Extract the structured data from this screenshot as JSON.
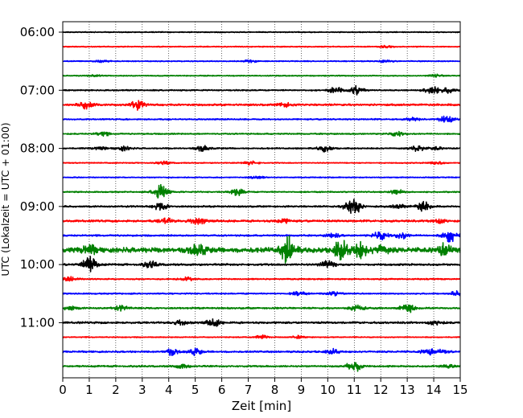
{
  "chart_data": {
    "type": "line",
    "xlabel": "Zeit  [min]",
    "ylabel": "UTC (Lokalzeit = UTC + 01:00)",
    "xlim": [
      0,
      15
    ],
    "x_ticks": [
      "0",
      "1",
      "2",
      "3",
      "4",
      "5",
      "6",
      "7",
      "8",
      "9",
      "10",
      "11",
      "12",
      "13",
      "14",
      "15"
    ],
    "y_ticks": [
      "06:00",
      "07:00",
      "08:00",
      "09:00",
      "10:00",
      "11:00"
    ],
    "grid": "vertical-dotted",
    "colors": [
      "#000000",
      "#ff0000",
      "#0000ff",
      "#008000"
    ],
    "traces": [
      {
        "start": "06:00",
        "color": "#000000",
        "amp": 0.6,
        "bursts": []
      },
      {
        "start": "06:15",
        "color": "#ff0000",
        "amp": 0.6,
        "bursts": [
          [
            12.2,
            1.2
          ]
        ]
      },
      {
        "start": "06:30",
        "color": "#0000ff",
        "amp": 0.6,
        "bursts": [
          [
            1.5,
            1.5
          ],
          [
            7.1,
            1.5
          ],
          [
            12.2,
            1.5
          ]
        ]
      },
      {
        "start": "06:45",
        "color": "#008000",
        "amp": 0.6,
        "bursts": [
          [
            1.2,
            1.0
          ],
          [
            14.1,
            1.5
          ]
        ]
      },
      {
        "start": "07:00",
        "color": "#000000",
        "amp": 0.8,
        "bursts": [
          [
            10.3,
            4
          ],
          [
            11.1,
            6
          ],
          [
            13.9,
            6
          ],
          [
            14.5,
            4
          ]
        ]
      },
      {
        "start": "07:15",
        "color": "#ff0000",
        "amp": 1.2,
        "bursts": [
          [
            0.9,
            5
          ],
          [
            2.8,
            6
          ],
          [
            8.4,
            3
          ]
        ]
      },
      {
        "start": "07:30",
        "color": "#0000ff",
        "amp": 0.8,
        "bursts": [
          [
            13.2,
            2
          ],
          [
            14.5,
            6
          ]
        ]
      },
      {
        "start": "07:45",
        "color": "#008000",
        "amp": 0.8,
        "bursts": [
          [
            1.5,
            3
          ],
          [
            12.6,
            3
          ]
        ]
      },
      {
        "start": "08:00",
        "color": "#000000",
        "amp": 0.8,
        "bursts": [
          [
            1.4,
            2
          ],
          [
            2.3,
            3
          ],
          [
            5.3,
            4
          ],
          [
            9.9,
            4
          ],
          [
            13.4,
            4
          ],
          [
            14.1,
            2
          ]
        ]
      },
      {
        "start": "08:15",
        "color": "#ff0000",
        "amp": 0.6,
        "bursts": [
          [
            3.8,
            2
          ],
          [
            7.1,
            2.5
          ],
          [
            14.1,
            2
          ]
        ]
      },
      {
        "start": "08:30",
        "color": "#0000ff",
        "amp": 0.6,
        "bursts": [
          [
            7.3,
            2
          ]
        ]
      },
      {
        "start": "08:45",
        "color": "#008000",
        "amp": 0.8,
        "bursts": [
          [
            3.7,
            12
          ],
          [
            6.6,
            5
          ],
          [
            12.6,
            3
          ]
        ]
      },
      {
        "start": "09:00",
        "color": "#000000",
        "amp": 1.0,
        "bursts": [
          [
            3.7,
            5
          ],
          [
            10.9,
            9
          ],
          [
            11.0,
            6
          ],
          [
            12.7,
            3
          ],
          [
            13.6,
            6
          ]
        ]
      },
      {
        "start": "09:15",
        "color": "#ff0000",
        "amp": 1.3,
        "bursts": [
          [
            3.9,
            4
          ],
          [
            5.1,
            5
          ],
          [
            8.3,
            3
          ],
          [
            14.2,
            3
          ]
        ]
      },
      {
        "start": "09:30",
        "color": "#0000ff",
        "amp": 1.0,
        "bursts": [
          [
            10.2,
            3
          ],
          [
            12.0,
            6
          ],
          [
            12.8,
            4
          ],
          [
            14.6,
            9
          ]
        ]
      },
      {
        "start": "09:45",
        "color": "#008000",
        "amp": 3.2,
        "bursts": [
          [
            1.0,
            6
          ],
          [
            5.1,
            8
          ],
          [
            8.5,
            16
          ],
          [
            10.5,
            12
          ],
          [
            11.2,
            10
          ],
          [
            12.0,
            6
          ],
          [
            14.4,
            7
          ]
        ]
      },
      {
        "start": "10:00",
        "color": "#000000",
        "amp": 1.2,
        "bursts": [
          [
            1.0,
            11
          ],
          [
            3.3,
            4
          ],
          [
            10.0,
            6
          ]
        ]
      },
      {
        "start": "10:15",
        "color": "#ff0000",
        "amp": 0.8,
        "bursts": [
          [
            0.3,
            3
          ],
          [
            4.7,
            2
          ]
        ]
      },
      {
        "start": "10:30",
        "color": "#0000ff",
        "amp": 0.8,
        "bursts": [
          [
            8.9,
            3
          ],
          [
            10.2,
            3
          ],
          [
            14.9,
            3
          ]
        ]
      },
      {
        "start": "10:45",
        "color": "#008000",
        "amp": 1.0,
        "bursts": [
          [
            0.3,
            3
          ],
          [
            2.2,
            3
          ],
          [
            11.1,
            4
          ],
          [
            13.0,
            6
          ]
        ]
      },
      {
        "start": "11:00",
        "color": "#000000",
        "amp": 1.2,
        "bursts": [
          [
            5.7,
            5
          ],
          [
            4.5,
            3
          ],
          [
            14.1,
            3
          ]
        ]
      },
      {
        "start": "11:15",
        "color": "#ff0000",
        "amp": 0.6,
        "bursts": [
          [
            7.5,
            2.5
          ],
          [
            8.9,
            2
          ]
        ]
      },
      {
        "start": "11:30",
        "color": "#0000ff",
        "amp": 1.0,
        "bursts": [
          [
            4.1,
            4
          ],
          [
            5.0,
            4
          ],
          [
            10.2,
            3
          ],
          [
            13.8,
            4
          ],
          [
            14.3,
            2
          ]
        ]
      },
      {
        "start": "11:45",
        "color": "#008000",
        "amp": 1.0,
        "bursts": [
          [
            4.5,
            3
          ],
          [
            11.0,
            9
          ],
          [
            14.5,
            2
          ]
        ]
      }
    ]
  }
}
